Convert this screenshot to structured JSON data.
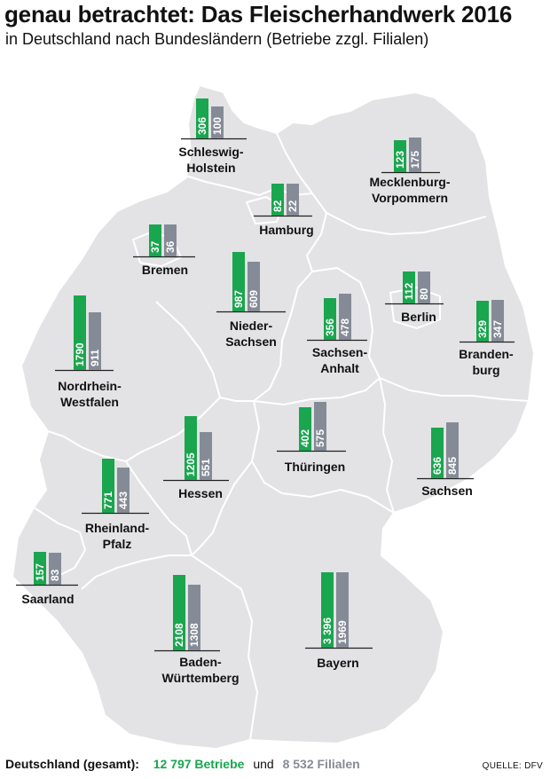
{
  "title": "genau betrachtet: Das Fleischerhandwerk 2016",
  "subtitle": "in Deutschland nach Bundesländern (Betriebe zzgl. Filialen)",
  "colors": {
    "betriebe": "#1aa54f",
    "filialen": "#858b96",
    "land": "#e3e3e5",
    "border": "#ffffff"
  },
  "footer": {
    "label": "Deutschland (gesamt):",
    "betriebe": "12 797 Betriebe",
    "connector": "und",
    "filialen": "8 532 Filialen",
    "source": "QUELLE: DFV"
  },
  "chart_data": {
    "type": "bar",
    "title": "genau betrachtet: Das Fleischerhandwerk 2016",
    "subtitle": "in Deutschland nach Bundesländern (Betriebe zzgl. Filialen)",
    "series": [
      {
        "name": "Betriebe",
        "color": "#1aa54f"
      },
      {
        "name": "Filialen",
        "color": "#858b96"
      }
    ],
    "regions": [
      {
        "name": [
          "Schleswig-",
          "Holstein"
        ],
        "betriebe": 306,
        "filialen": 100,
        "betriebe_label": "306",
        "filialen_label": "100"
      },
      {
        "name": [
          "Mecklenburg-",
          "Vorpommern"
        ],
        "betriebe": 123,
        "filialen": 175,
        "betriebe_label": "123",
        "filialen_label": "175"
      },
      {
        "name": [
          "Hamburg"
        ],
        "betriebe": 82,
        "filialen": 22,
        "betriebe_label": "82",
        "filialen_label": "22"
      },
      {
        "name": [
          "Bremen"
        ],
        "betriebe": 37,
        "filialen": 36,
        "betriebe_label": "37",
        "filialen_label": "36"
      },
      {
        "name": [
          "Nieder-",
          "Sachsen"
        ],
        "betriebe": 987,
        "filialen": 609,
        "betriebe_label": "987",
        "filialen_label": "609"
      },
      {
        "name": [
          "Berlin"
        ],
        "betriebe": 112,
        "filialen": 80,
        "betriebe_label": "112",
        "filialen_label": "80"
      },
      {
        "name": [
          "Sachsen-",
          "Anhalt"
        ],
        "betriebe": 356,
        "filialen": 478,
        "betriebe_label": "356",
        "filialen_label": "478"
      },
      {
        "name": [
          "Branden-",
          "burg"
        ],
        "betriebe": 329,
        "filialen": 347,
        "betriebe_label": "329",
        "filialen_label": "347"
      },
      {
        "name": [
          "Nordrhein-",
          "Westfalen"
        ],
        "betriebe": 1790,
        "filialen": 911,
        "betriebe_label": "1790",
        "filialen_label": "911"
      },
      {
        "name": [
          "Thüringen"
        ],
        "betriebe": 402,
        "filialen": 575,
        "betriebe_label": "402",
        "filialen_label": "575"
      },
      {
        "name": [
          "Hessen"
        ],
        "betriebe": 1205,
        "filialen": 551,
        "betriebe_label": "1205",
        "filialen_label": "551"
      },
      {
        "name": [
          "Sachsen"
        ],
        "betriebe": 636,
        "filialen": 845,
        "betriebe_label": "636",
        "filialen_label": "845"
      },
      {
        "name": [
          "Rheinland-",
          "Pfalz"
        ],
        "betriebe": 771,
        "filialen": 443,
        "betriebe_label": "771",
        "filialen_label": "443"
      },
      {
        "name": [
          "Saarland"
        ],
        "betriebe": 157,
        "filialen": 83,
        "betriebe_label": "157",
        "filialen_label": "83"
      },
      {
        "name": [
          "Bayern"
        ],
        "betriebe": 3396,
        "filialen": 1969,
        "betriebe_label": "3 396",
        "filialen_label": "1969"
      },
      {
        "name": [
          "Baden-",
          "Württemberg"
        ],
        "betriebe": 2108,
        "filialen": 1308,
        "betriebe_label": "2108",
        "filialen_label": "1308"
      }
    ]
  }
}
